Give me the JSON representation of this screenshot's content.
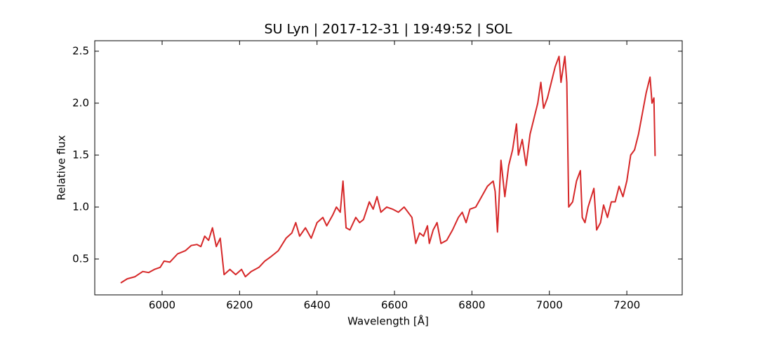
{
  "chart_data": {
    "type": "line",
    "title": "SU Lyn | 2017-12-31 | 19:49:52 | SOL",
    "xlabel": "Wavelength [Å]",
    "ylabel": "Relative flux",
    "xlim": [
      5826,
      7343
    ],
    "ylim": [
      0.155,
      2.601
    ],
    "xticks": [
      6000,
      6200,
      6400,
      6600,
      6800,
      7000,
      7200
    ],
    "yticks": [
      0.5,
      {
        "value": 1.0,
        "label": "1.0"
      },
      1.5,
      {
        "value": 2.0,
        "label": "2.0"
      },
      2.5
    ],
    "grid": false,
    "series": [
      {
        "color": "#d62728",
        "x": [
          5893,
          5910,
          5930,
          5950,
          5965,
          5980,
          5995,
          6005,
          6020,
          6040,
          6060,
          6075,
          6090,
          6100,
          6110,
          6120,
          6130,
          6140,
          6150,
          6160,
          6175,
          6190,
          6205,
          6215,
          6230,
          6250,
          6265,
          6280,
          6300,
          6320,
          6335,
          6345,
          6355,
          6370,
          6385,
          6400,
          6415,
          6425,
          6440,
          6450,
          6460,
          6467,
          6475,
          6485,
          6500,
          6510,
          6520,
          6535,
          6545,
          6555,
          6565,
          6580,
          6595,
          6610,
          6625,
          6635,
          6645,
          6655,
          6665,
          6675,
          6685,
          6690,
          6700,
          6710,
          6720,
          6735,
          6750,
          6765,
          6775,
          6785,
          6795,
          6810,
          6825,
          6840,
          6855,
          6860,
          6866,
          6875,
          6885,
          6895,
          6905,
          6915,
          6920,
          6930,
          6940,
          6950,
          6960,
          6970,
          6978,
          6985,
          6995,
          7005,
          7015,
          7025,
          7030,
          7040,
          7045,
          7050,
          7060,
          7070,
          7080,
          7085,
          7092,
          7100,
          7115,
          7122,
          7132,
          7140,
          7150,
          7160,
          7170,
          7180,
          7190,
          7200,
          7210,
          7220,
          7230,
          7240,
          7250,
          7260,
          7265,
          7270,
          7273
        ],
        "values": [
          0.27,
          0.31,
          0.33,
          0.38,
          0.37,
          0.4,
          0.42,
          0.48,
          0.47,
          0.55,
          0.58,
          0.63,
          0.64,
          0.62,
          0.72,
          0.68,
          0.8,
          0.62,
          0.7,
          0.35,
          0.4,
          0.35,
          0.4,
          0.33,
          0.38,
          0.42,
          0.48,
          0.52,
          0.58,
          0.7,
          0.75,
          0.85,
          0.72,
          0.8,
          0.7,
          0.85,
          0.9,
          0.82,
          0.92,
          1.0,
          0.95,
          1.25,
          0.8,
          0.78,
          0.9,
          0.85,
          0.88,
          1.05,
          0.98,
          1.1,
          0.95,
          1.0,
          0.98,
          0.95,
          1.0,
          0.95,
          0.9,
          0.65,
          0.75,
          0.72,
          0.82,
          0.65,
          0.78,
          0.85,
          0.65,
          0.68,
          0.78,
          0.9,
          0.95,
          0.85,
          0.98,
          1.0,
          1.1,
          1.2,
          1.25,
          1.15,
          0.76,
          1.45,
          1.1,
          1.4,
          1.55,
          1.8,
          1.5,
          1.65,
          1.4,
          1.7,
          1.85,
          2.0,
          2.2,
          1.95,
          2.05,
          2.2,
          2.35,
          2.45,
          2.2,
          2.45,
          2.2,
          1.0,
          1.05,
          1.25,
          1.35,
          0.9,
          0.85,
          1.0,
          1.18,
          0.78,
          0.85,
          1.02,
          0.9,
          1.05,
          1.05,
          1.2,
          1.1,
          1.25,
          1.5,
          1.55,
          1.7,
          1.9,
          2.1,
          2.25,
          2.0,
          2.05,
          1.49
        ]
      }
    ]
  }
}
